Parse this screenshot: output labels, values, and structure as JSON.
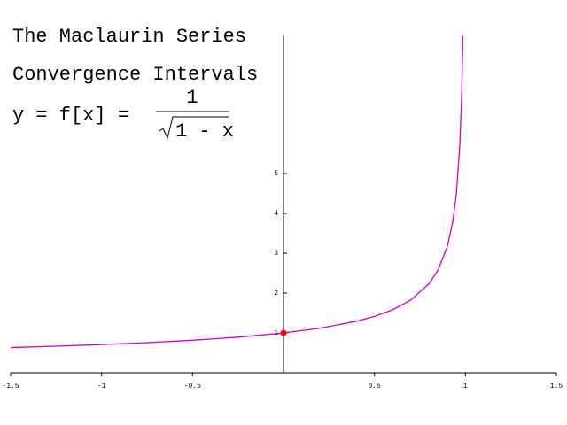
{
  "chart_data": {
    "type": "line",
    "title": "The Maclaurin Series",
    "subtitle": "Convergence Intervals",
    "formula": {
      "lhs": "y = f[x] =",
      "numerator": "1",
      "radicand": "1 - x"
    },
    "x": [
      -1.5,
      -1.25,
      -1,
      -0.75,
      -0.5,
      -0.25,
      0,
      0.2,
      0.4,
      0.5,
      0.6,
      0.7,
      0.8,
      0.85,
      0.9,
      0.93,
      0.95,
      0.97,
      0.98,
      0.986
    ],
    "values": [
      0.632,
      0.667,
      0.707,
      0.756,
      0.816,
      0.894,
      1,
      1.118,
      1.291,
      1.414,
      1.581,
      1.826,
      2.236,
      2.582,
      3.162,
      3.78,
      4.472,
      5.774,
      7.071,
      8.452
    ],
    "color": "#cc00cc",
    "highlight": {
      "x": 0,
      "y": 1,
      "color": "#ff0000"
    },
    "xlim": [
      -1.5,
      1.5
    ],
    "ylim": [
      0,
      8.47
    ],
    "xticks": [
      -1.5,
      -1,
      -0.5,
      0.5,
      1,
      1.5
    ],
    "yticks": [
      1,
      2,
      3,
      4,
      5
    ]
  }
}
